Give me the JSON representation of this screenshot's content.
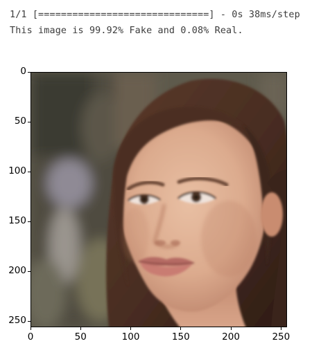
{
  "notebook_output": {
    "progress_line": "1/1 [==============================] - 0s 38ms/step",
    "result_line": "This image is 99.92% Fake and 0.08% Real."
  },
  "figure": {
    "type": "image",
    "content": "photo of a young woman's face with long brown hair, blurred outdoor background",
    "x_range": [
      0,
      256
    ],
    "y_range": [
      256,
      0
    ],
    "x_ticks": [
      0,
      50,
      100,
      150,
      200,
      250
    ],
    "y_ticks": [
      0,
      50,
      100,
      150,
      200,
      250
    ],
    "x_tick_labels": [
      "0",
      "50",
      "100",
      "150",
      "200",
      "250"
    ],
    "y_tick_labels": [
      "0",
      "50",
      "100",
      "150",
      "200",
      "250"
    ]
  }
}
